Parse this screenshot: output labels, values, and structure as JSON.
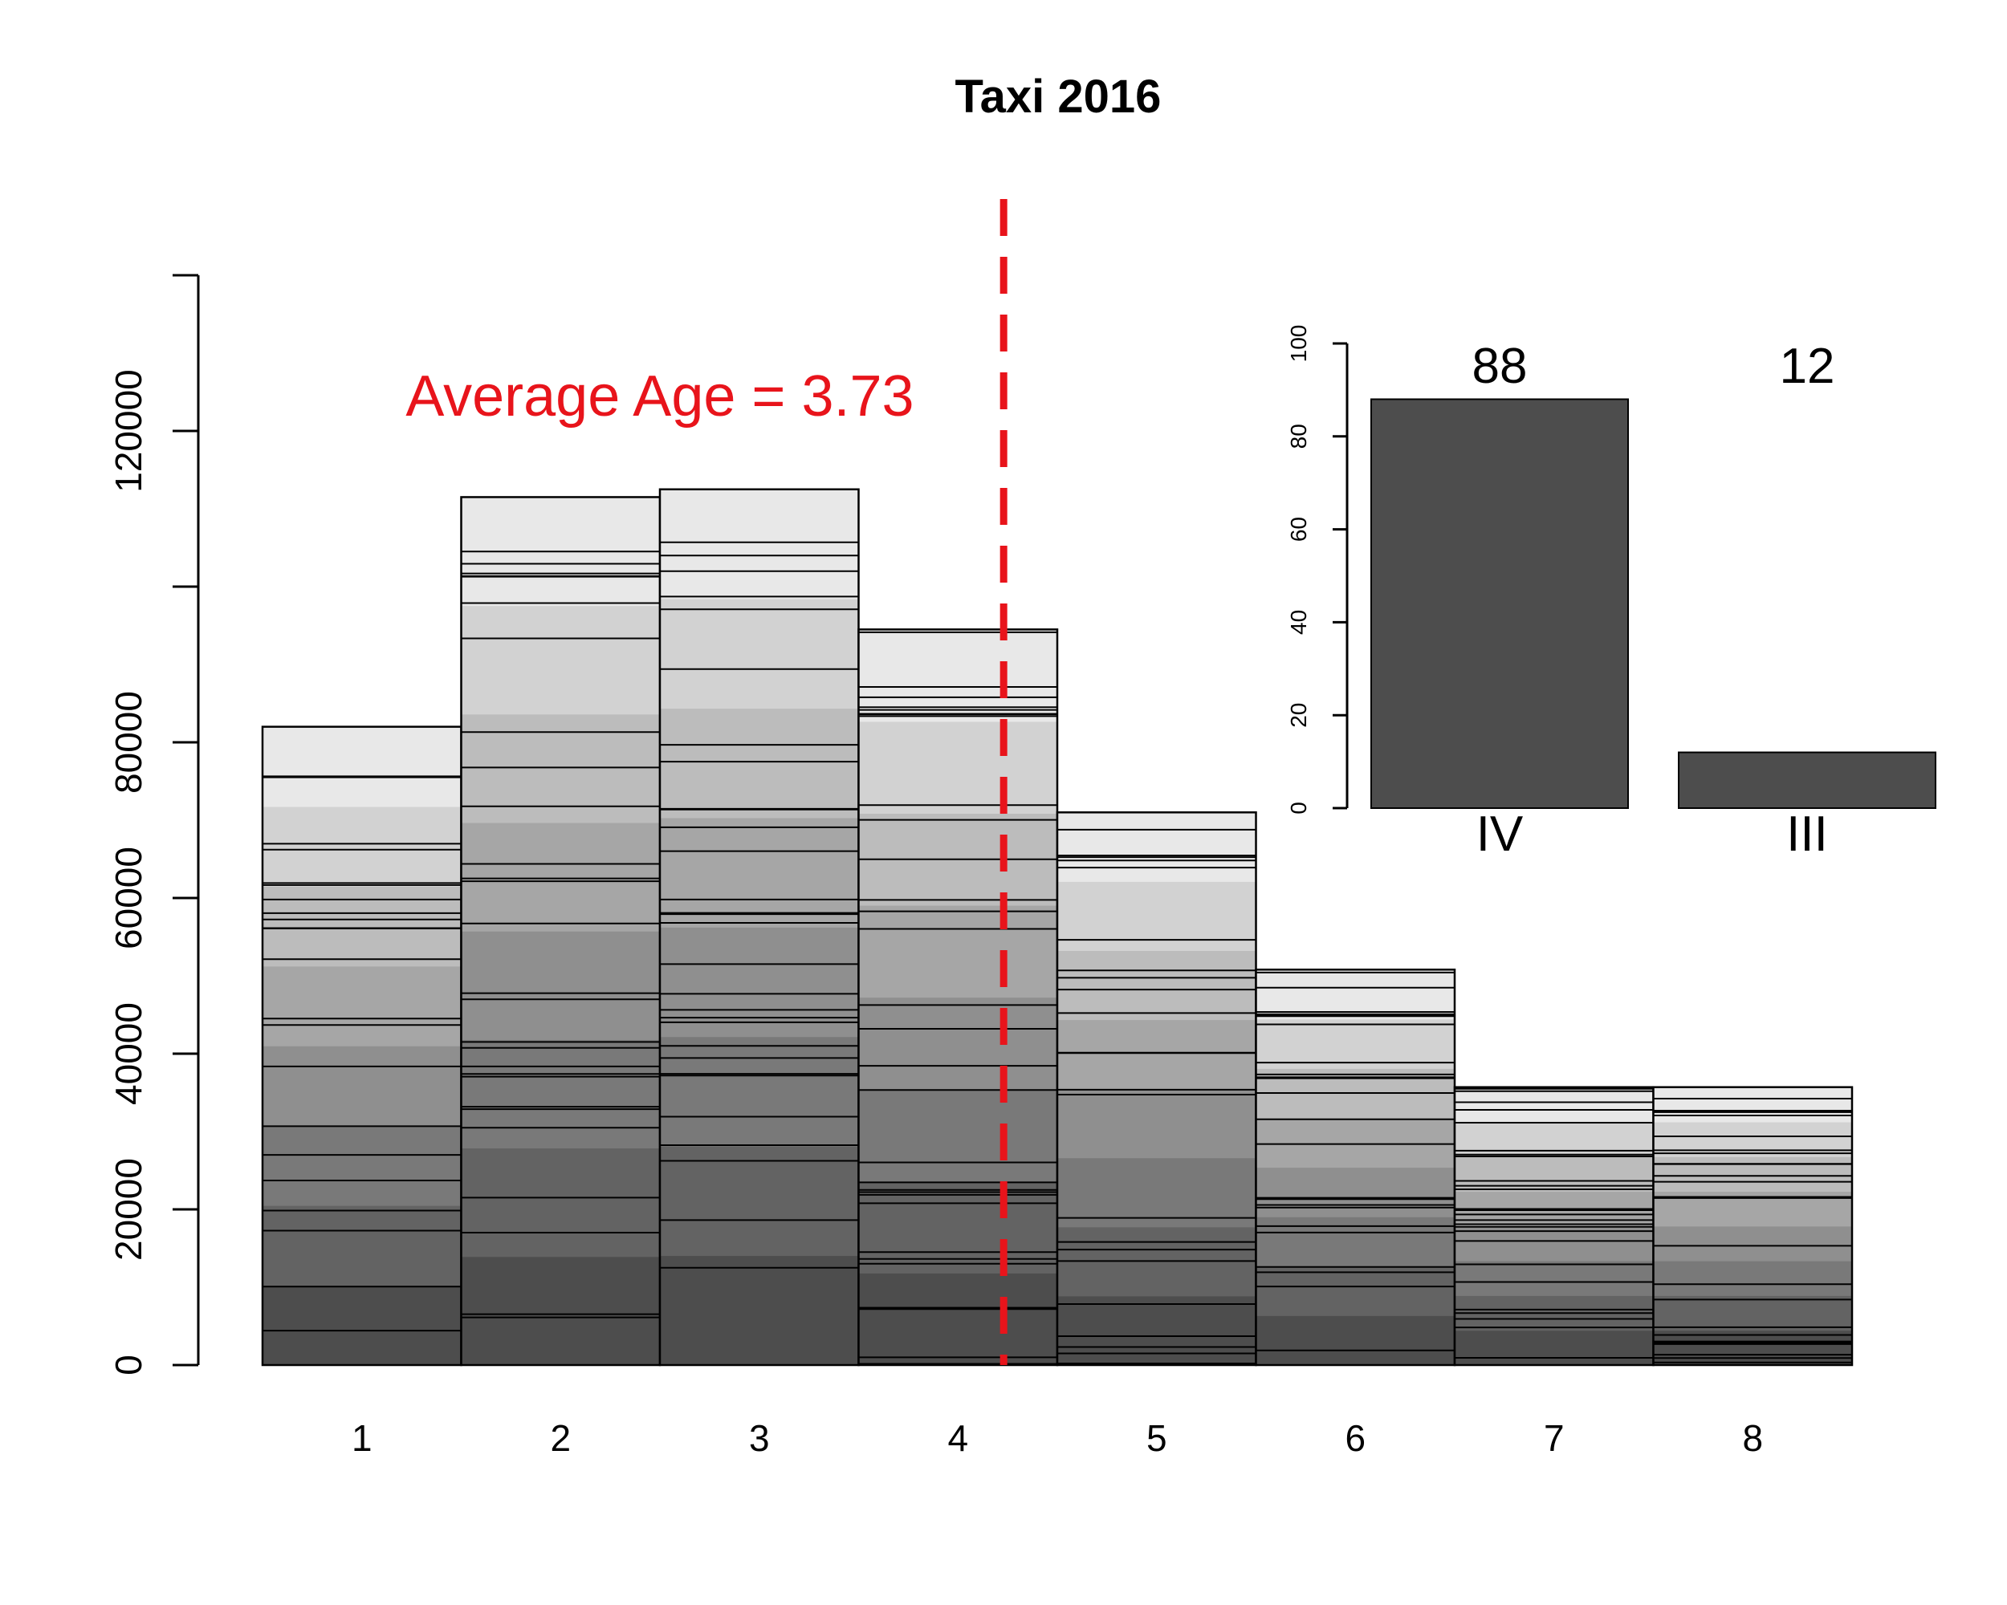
{
  "chart_data": [
    {
      "type": "bar",
      "title": "Taxi 2016",
      "xlabel": "",
      "ylabel": "",
      "categories": [
        "1",
        "2",
        "3",
        "4",
        "5",
        "6",
        "7",
        "8"
      ],
      "values": [
        82000,
        111500,
        112500,
        94500,
        71000,
        50800,
        35700,
        35700
      ],
      "ylim": [
        0,
        140000
      ],
      "y_ticks": [
        0,
        20000,
        40000,
        60000,
        80000,
        100000,
        120000,
        140000
      ],
      "y_tick_labels": [
        "0",
        "20000",
        "40000",
        "60000",
        "80000",
        "",
        "120000",
        ""
      ],
      "stacked_segments": "each bar is divided into many thin horizontal gray segments, darker at the bottom and lighter toward the top",
      "reference_line": {
        "x": 4.23,
        "color": "#e8141b",
        "style": "dashed"
      },
      "annotation": {
        "text": "Average Age =  3.73",
        "color": "#e8141b"
      }
    },
    {
      "type": "bar",
      "title": "",
      "categories": [
        "IV",
        "III"
      ],
      "values": [
        88,
        12
      ],
      "value_labels": [
        "88",
        "12"
      ],
      "ylim": [
        0,
        100
      ],
      "y_ticks": [
        0,
        20,
        40,
        60,
        80,
        100
      ],
      "bar_color": "#4d4d4d"
    }
  ]
}
